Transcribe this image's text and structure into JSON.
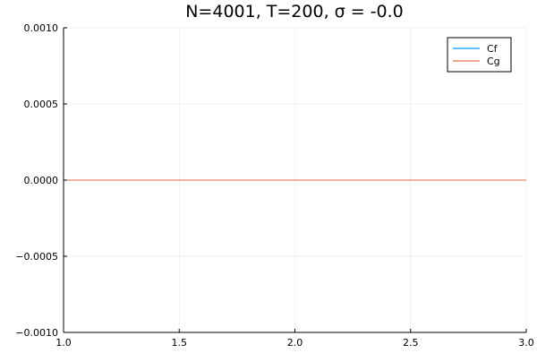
{
  "chart_data": {
    "type": "line",
    "title": "N=4001, T=200, σ = -0.0",
    "xlabel": "",
    "ylabel": "",
    "xlim": [
      1.0,
      3.0
    ],
    "ylim": [
      -0.001,
      0.001
    ],
    "x_ticks": [
      1.0,
      1.5,
      2.0,
      2.5,
      3.0
    ],
    "x_tick_labels": [
      "1.0",
      "1.5",
      "2.0",
      "2.5",
      "3.0"
    ],
    "y_ticks": [
      -0.001,
      -0.0005,
      0.0,
      0.0005,
      0.001
    ],
    "y_tick_labels": [
      "−0.0010",
      "−0.0005",
      "0.0000",
      "0.0005",
      "0.0010"
    ],
    "grid": true,
    "legend_position": "top-right",
    "series": [
      {
        "name": "Cf",
        "color": "#009AFA",
        "x": [
          1.0,
          3.0
        ],
        "y": [
          0.0,
          0.0
        ]
      },
      {
        "name": "Cg",
        "color": "#E36F47",
        "x": [
          1.0,
          3.0
        ],
        "y": [
          0.0,
          0.0
        ]
      }
    ]
  }
}
